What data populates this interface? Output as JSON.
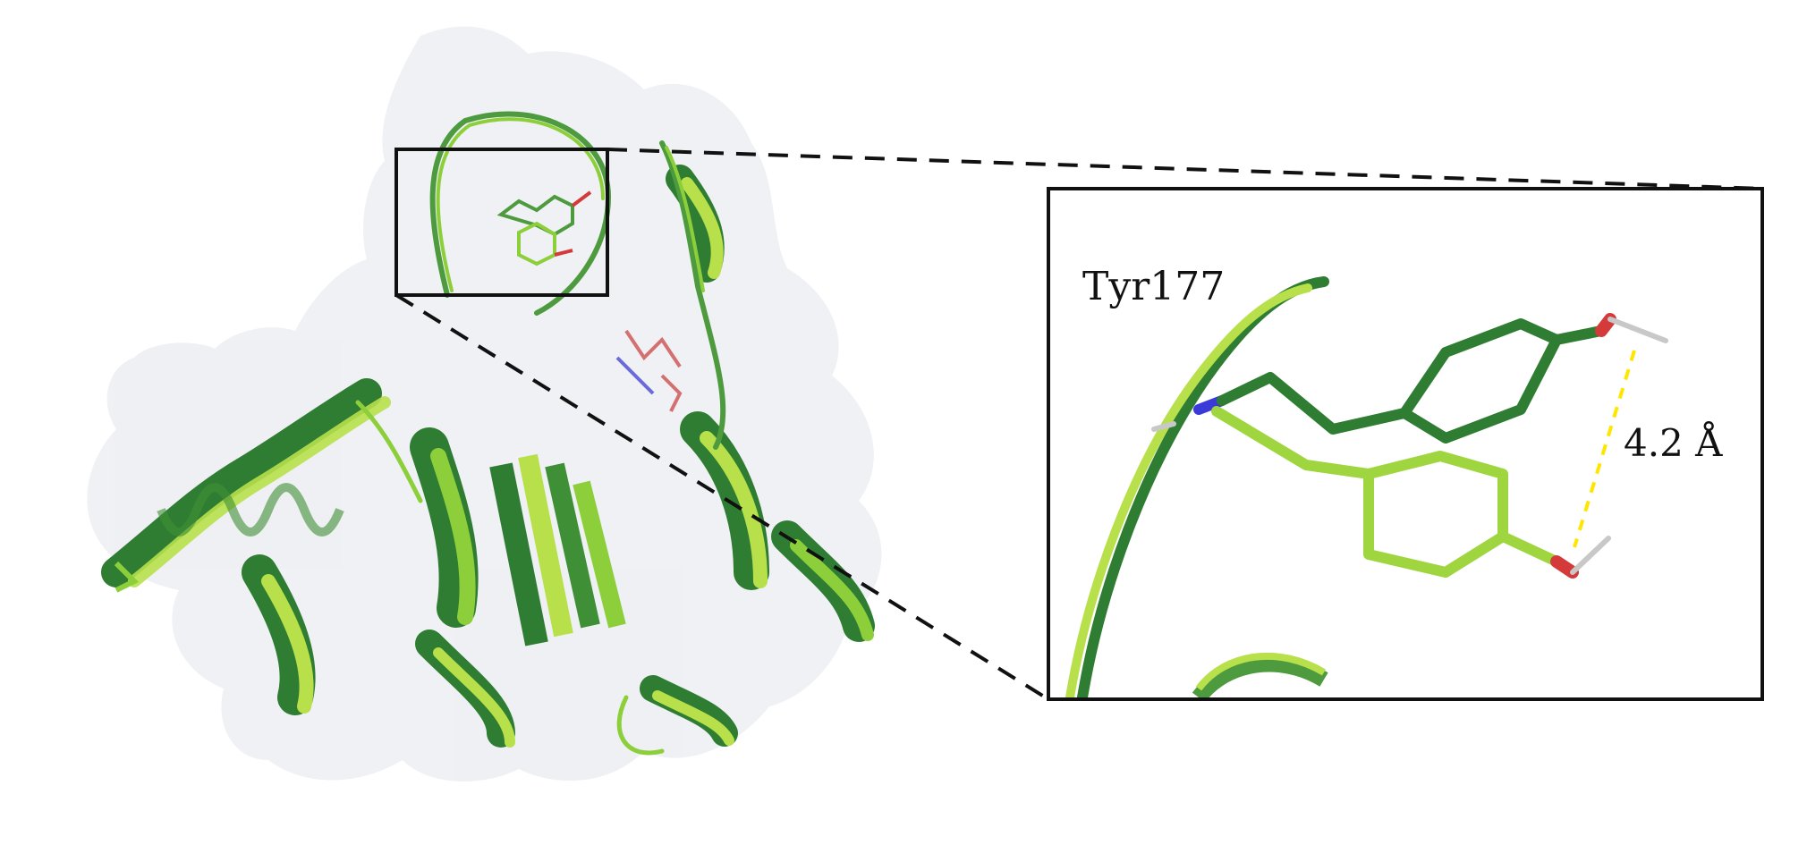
{
  "figure": {
    "residue_label": "Tyr177",
    "distance_label": "4.2 Å"
  },
  "colors": {
    "surface": "#e9ebf0",
    "dark_green": "#2f7d32",
    "mid_green": "#4e9a3e",
    "light_green": "#b7e04a",
    "lime": "#8ccf3a",
    "oxygen": "#d43a3a",
    "nitrogen": "#3a3ad8",
    "hydrogen": "#c8c8c8",
    "distance_dash": "#ffe600",
    "frame": "#111111"
  },
  "icons": {
    "overview": "protein-cartoon-overlay",
    "zoom": "tyrosine-sidechain-overlay"
  }
}
